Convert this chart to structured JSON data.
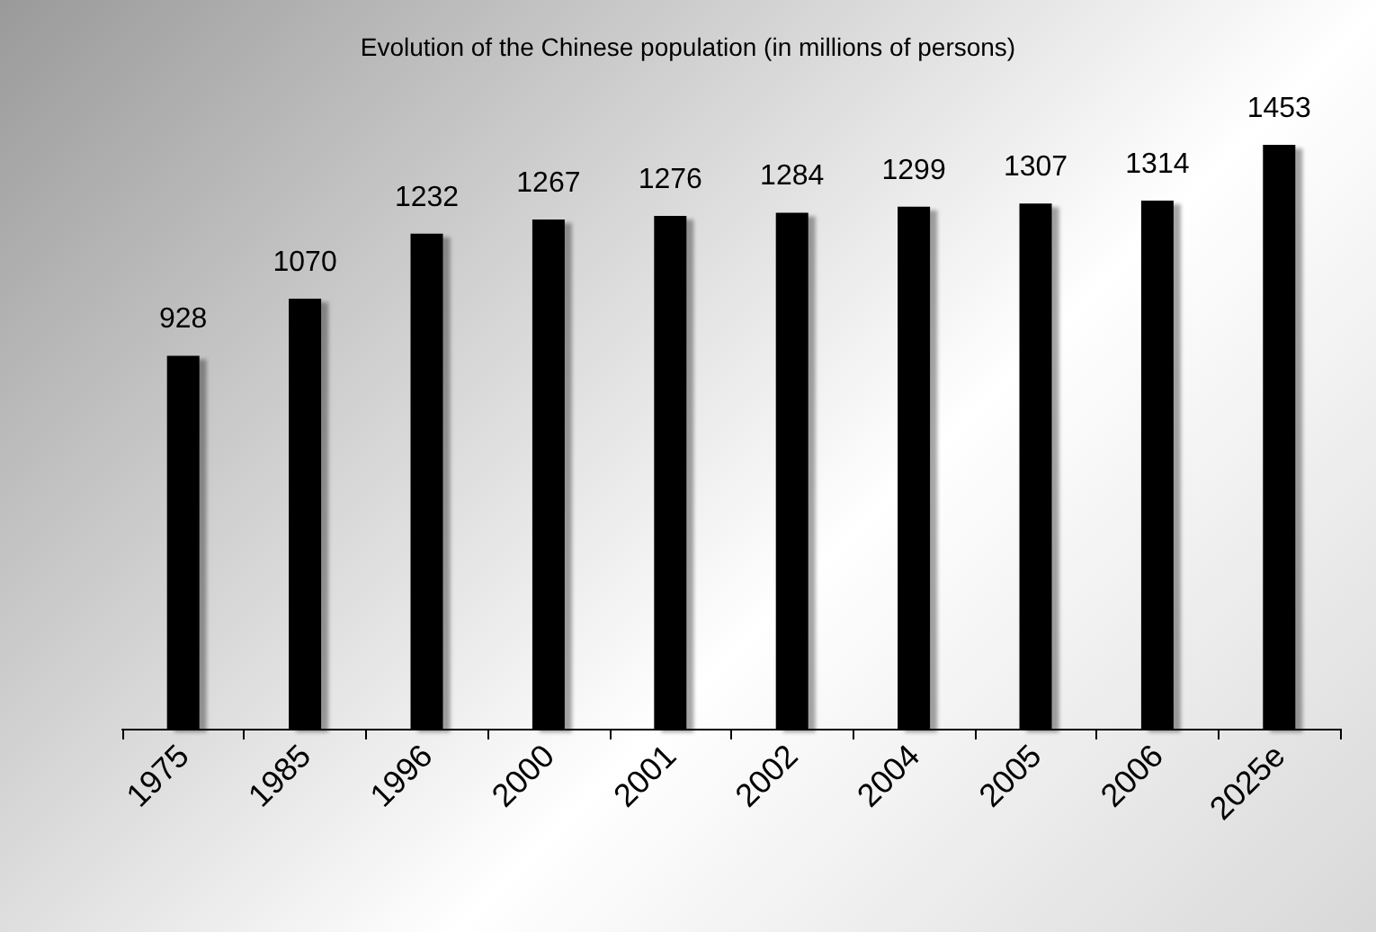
{
  "chart_data": {
    "type": "bar",
    "title": "Evolution of the Chinese population (in millions of persons)",
    "categories": [
      "1975",
      "1985",
      "1996",
      "2000",
      "2001",
      "2002",
      "2004",
      "2005",
      "2006",
      "2025e"
    ],
    "values": [
      928,
      1070,
      1232,
      1267,
      1276,
      1284,
      1299,
      1307,
      1314,
      1453
    ],
    "color": "#000000",
    "data_labels": true
  }
}
